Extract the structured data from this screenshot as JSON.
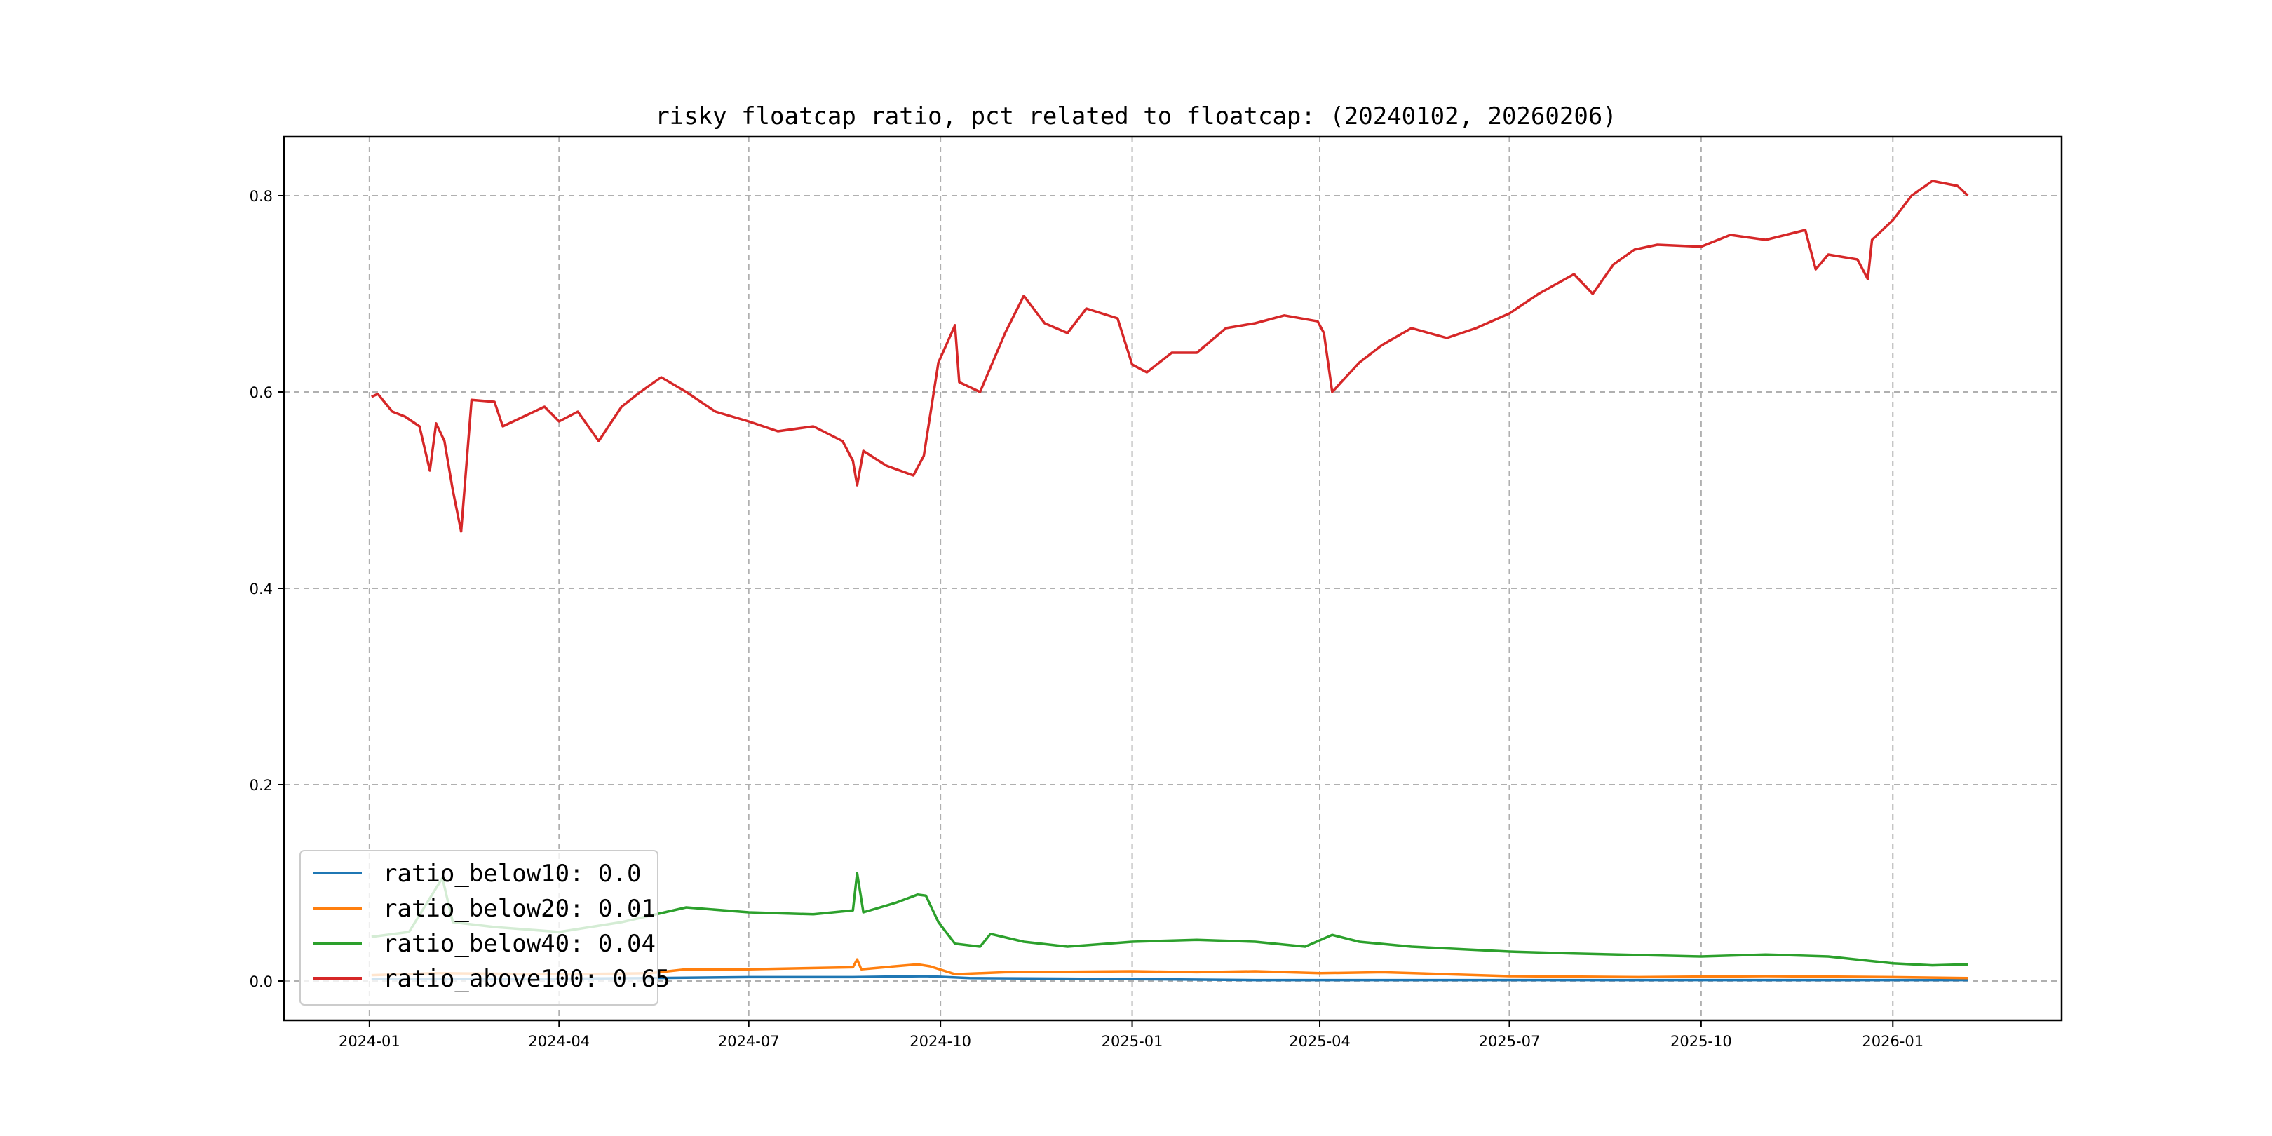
{
  "chart_data": {
    "type": "line",
    "title": "risky floatcap ratio, pct related to floatcap: (20240102, 20260206)",
    "xlabel": "",
    "ylabel": "",
    "x_range": [
      "2023-11-21",
      "2026-03-23"
    ],
    "ylim": [
      -0.04,
      0.86
    ],
    "x_ticks": [
      "2024-01",
      "2024-04",
      "2024-07",
      "2024-10",
      "2025-01",
      "2025-04",
      "2025-07",
      "2025-10",
      "2026-01"
    ],
    "y_ticks": [
      "0.0",
      "0.2",
      "0.4",
      "0.6",
      "0.8"
    ],
    "grid": true,
    "legend_position": "lower-left",
    "series": [
      {
        "name": "ratio_below10",
        "legend_label": "ratio_below10: 0.0",
        "color": "#1f77b4",
        "points": [
          [
            "2024-01-02",
            0.002
          ],
          [
            "2024-03-01",
            0.002
          ],
          [
            "2024-05-15",
            0.003
          ],
          [
            "2024-07-01",
            0.004
          ],
          [
            "2024-08-20",
            0.004
          ],
          [
            "2024-09-24",
            0.005
          ],
          [
            "2024-10-15",
            0.003
          ],
          [
            "2025-01-01",
            0.002
          ],
          [
            "2025-03-01",
            0.001
          ],
          [
            "2025-06-01",
            0.001
          ],
          [
            "2025-09-01",
            0.001
          ],
          [
            "2025-12-01",
            0.001
          ],
          [
            "2026-02-06",
            0.001
          ]
        ]
      },
      {
        "name": "ratio_below20",
        "legend_label": "ratio_below20: 0.01",
        "color": "#ff7f0e",
        "points": [
          [
            "2024-01-02",
            0.006
          ],
          [
            "2024-02-01",
            0.008
          ],
          [
            "2024-04-01",
            0.007
          ],
          [
            "2024-05-15",
            0.008
          ],
          [
            "2024-06-01",
            0.012
          ],
          [
            "2024-07-01",
            0.012
          ],
          [
            "2024-08-20",
            0.014
          ],
          [
            "2024-08-22",
            0.022
          ],
          [
            "2024-08-24",
            0.012
          ],
          [
            "2024-09-20",
            0.017
          ],
          [
            "2024-09-26",
            0.015
          ],
          [
            "2024-10-08",
            0.007
          ],
          [
            "2024-11-01",
            0.009
          ],
          [
            "2025-01-01",
            0.01
          ],
          [
            "2025-02-01",
            0.009
          ],
          [
            "2025-03-01",
            0.01
          ],
          [
            "2025-04-01",
            0.008
          ],
          [
            "2025-05-01",
            0.009
          ],
          [
            "2025-06-01",
            0.007
          ],
          [
            "2025-07-01",
            0.005
          ],
          [
            "2025-09-01",
            0.004
          ],
          [
            "2025-11-01",
            0.005
          ],
          [
            "2026-01-01",
            0.004
          ],
          [
            "2026-02-06",
            0.003
          ]
        ]
      },
      {
        "name": "ratio_below40",
        "legend_label": "ratio_below40: 0.04",
        "color": "#2ca02c",
        "points": [
          [
            "2024-01-02",
            0.045
          ],
          [
            "2024-01-20",
            0.05
          ],
          [
            "2024-02-05",
            0.105
          ],
          [
            "2024-02-10",
            0.06
          ],
          [
            "2024-03-01",
            0.055
          ],
          [
            "2024-04-01",
            0.05
          ],
          [
            "2024-05-01",
            0.06
          ],
          [
            "2024-06-01",
            0.075
          ],
          [
            "2024-07-01",
            0.07
          ],
          [
            "2024-08-01",
            0.068
          ],
          [
            "2024-08-20",
            0.072
          ],
          [
            "2024-08-22",
            0.11
          ],
          [
            "2024-08-25",
            0.07
          ],
          [
            "2024-09-10",
            0.08
          ],
          [
            "2024-09-20",
            0.088
          ],
          [
            "2024-09-24",
            0.087
          ],
          [
            "2024-09-30",
            0.06
          ],
          [
            "2024-10-08",
            0.038
          ],
          [
            "2024-10-20",
            0.035
          ],
          [
            "2024-10-25",
            0.048
          ],
          [
            "2024-11-10",
            0.04
          ],
          [
            "2024-12-01",
            0.035
          ],
          [
            "2025-01-01",
            0.04
          ],
          [
            "2025-02-01",
            0.042
          ],
          [
            "2025-03-01",
            0.04
          ],
          [
            "2025-03-25",
            0.035
          ],
          [
            "2025-04-07",
            0.047
          ],
          [
            "2025-04-20",
            0.04
          ],
          [
            "2025-05-15",
            0.035
          ],
          [
            "2025-07-01",
            0.03
          ],
          [
            "2025-08-01",
            0.028
          ],
          [
            "2025-10-01",
            0.025
          ],
          [
            "2025-11-01",
            0.027
          ],
          [
            "2025-12-01",
            0.025
          ],
          [
            "2026-01-01",
            0.018
          ],
          [
            "2026-01-20",
            0.016
          ],
          [
            "2026-02-06",
            0.017
          ]
        ]
      },
      {
        "name": "ratio_above100",
        "legend_label": "ratio_above100: 0.65",
        "color": "#d62728",
        "points": [
          [
            "2024-01-02",
            0.595
          ],
          [
            "2024-01-05",
            0.598
          ],
          [
            "2024-01-12",
            0.58
          ],
          [
            "2024-01-18",
            0.575
          ],
          [
            "2024-01-25",
            0.565
          ],
          [
            "2024-01-30",
            0.52
          ],
          [
            "2024-02-02",
            0.568
          ],
          [
            "2024-02-06",
            0.55
          ],
          [
            "2024-02-10",
            0.5
          ],
          [
            "2024-02-14",
            0.458
          ],
          [
            "2024-02-19",
            0.592
          ],
          [
            "2024-03-01",
            0.59
          ],
          [
            "2024-03-05",
            0.565
          ],
          [
            "2024-03-15",
            0.575
          ],
          [
            "2024-03-25",
            0.585
          ],
          [
            "2024-04-01",
            0.57
          ],
          [
            "2024-04-10",
            0.58
          ],
          [
            "2024-04-20",
            0.55
          ],
          [
            "2024-05-01",
            0.585
          ],
          [
            "2024-05-10",
            0.6
          ],
          [
            "2024-05-20",
            0.615
          ],
          [
            "2024-06-01",
            0.6
          ],
          [
            "2024-06-15",
            0.58
          ],
          [
            "2024-07-01",
            0.57
          ],
          [
            "2024-07-15",
            0.56
          ],
          [
            "2024-08-01",
            0.565
          ],
          [
            "2024-08-15",
            0.55
          ],
          [
            "2024-08-20",
            0.53
          ],
          [
            "2024-08-22",
            0.505
          ],
          [
            "2024-08-25",
            0.54
          ],
          [
            "2024-09-05",
            0.525
          ],
          [
            "2024-09-18",
            0.515
          ],
          [
            "2024-09-23",
            0.535
          ],
          [
            "2024-09-30",
            0.63
          ],
          [
            "2024-10-08",
            0.668
          ],
          [
            "2024-10-10",
            0.61
          ],
          [
            "2024-10-20",
            0.6
          ],
          [
            "2024-11-01",
            0.66
          ],
          [
            "2024-11-10",
            0.698
          ],
          [
            "2024-11-20",
            0.67
          ],
          [
            "2024-12-01",
            0.66
          ],
          [
            "2024-12-10",
            0.685
          ],
          [
            "2024-12-25",
            0.675
          ],
          [
            "2025-01-01",
            0.628
          ],
          [
            "2025-01-08",
            0.62
          ],
          [
            "2025-01-20",
            0.64
          ],
          [
            "2025-02-01",
            0.64
          ],
          [
            "2025-02-15",
            0.665
          ],
          [
            "2025-03-01",
            0.67
          ],
          [
            "2025-03-15",
            0.678
          ],
          [
            "2025-03-31",
            0.672
          ],
          [
            "2025-04-03",
            0.66
          ],
          [
            "2025-04-07",
            0.6
          ],
          [
            "2025-04-20",
            0.63
          ],
          [
            "2025-05-01",
            0.648
          ],
          [
            "2025-05-15",
            0.665
          ],
          [
            "2025-06-01",
            0.655
          ],
          [
            "2025-06-15",
            0.665
          ],
          [
            "2025-07-01",
            0.68
          ],
          [
            "2025-07-15",
            0.7
          ],
          [
            "2025-08-01",
            0.72
          ],
          [
            "2025-08-10",
            0.7
          ],
          [
            "2025-08-20",
            0.73
          ],
          [
            "2025-08-30",
            0.745
          ],
          [
            "2025-09-10",
            0.75
          ],
          [
            "2025-10-01",
            0.748
          ],
          [
            "2025-10-15",
            0.76
          ],
          [
            "2025-11-01",
            0.755
          ],
          [
            "2025-11-20",
            0.765
          ],
          [
            "2025-11-25",
            0.725
          ],
          [
            "2025-12-01",
            0.74
          ],
          [
            "2025-12-15",
            0.735
          ],
          [
            "2025-12-20",
            0.715
          ],
          [
            "2025-12-22",
            0.755
          ],
          [
            "2026-01-01",
            0.775
          ],
          [
            "2026-01-10",
            0.8
          ],
          [
            "2026-01-20",
            0.815
          ],
          [
            "2026-02-01",
            0.81
          ],
          [
            "2026-02-06",
            0.8
          ]
        ]
      }
    ]
  }
}
